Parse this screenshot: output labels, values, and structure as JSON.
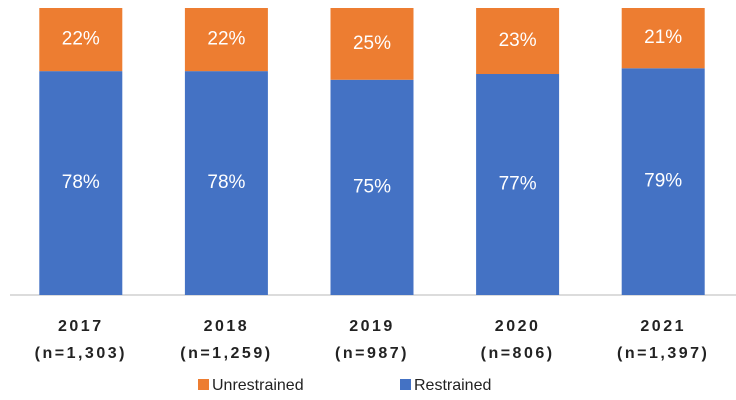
{
  "chart_data": {
    "type": "stacked_bar",
    "categories": [
      [
        "2017",
        "(n=1,303)"
      ],
      [
        "2018",
        "(n=1,259)"
      ],
      [
        "2019",
        "(n=987)"
      ],
      [
        "2020",
        "(n=806)"
      ],
      [
        "2021",
        "(n=1,397)"
      ]
    ],
    "series": [
      {
        "name": "Unrestrained",
        "color": "#ed7d31",
        "values": [
          22,
          22,
          25,
          23,
          21
        ],
        "value_labels": [
          "22%",
          "22%",
          "25%",
          "23%",
          "21%"
        ]
      },
      {
        "name": "Restrained",
        "color": "#4472c4",
        "values": [
          78,
          78,
          75,
          77,
          79
        ],
        "value_labels": [
          "78%",
          "78%",
          "75%",
          "77%",
          "79%"
        ]
      }
    ],
    "ylim": [
      0,
      100
    ]
  }
}
